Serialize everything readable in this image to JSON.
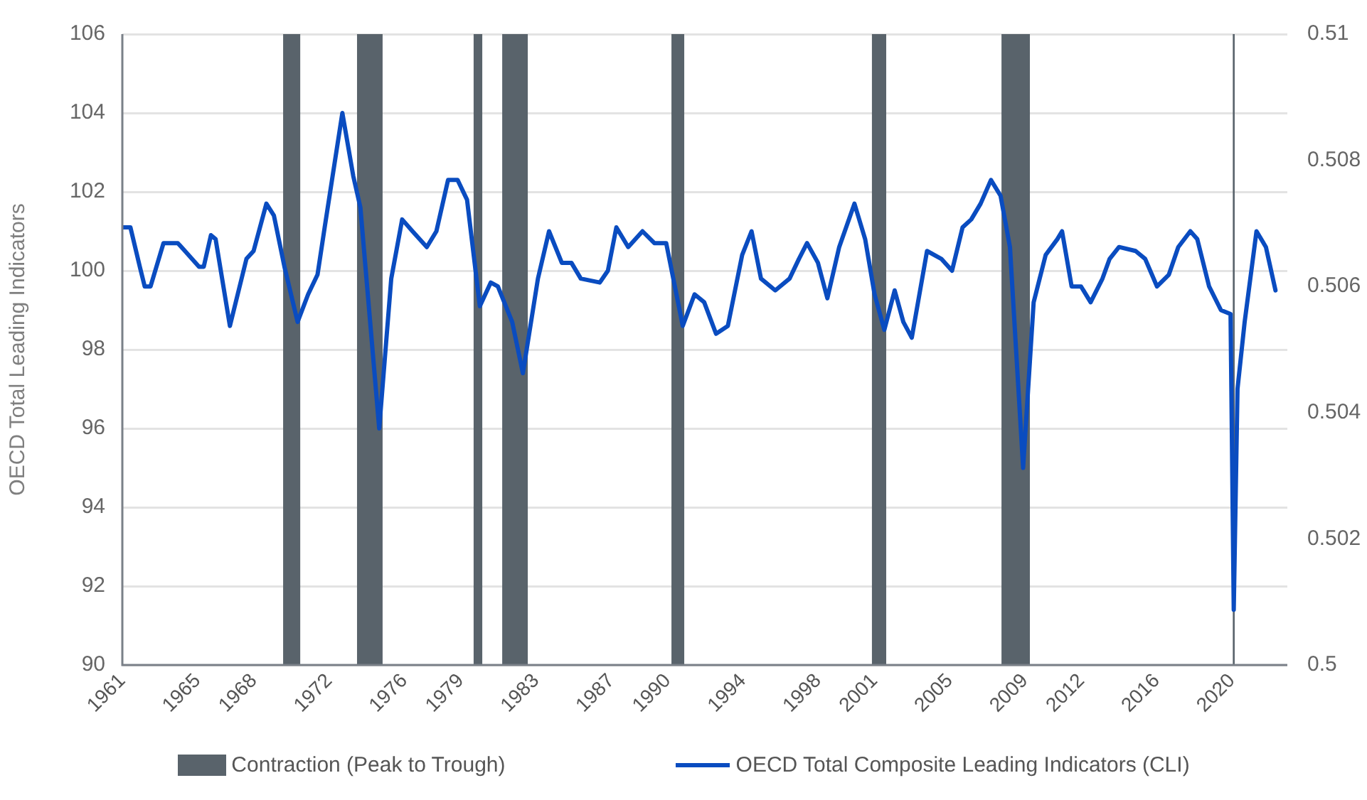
{
  "chart_data": {
    "type": "line",
    "ylabel": "OECD Total Leading Indicators",
    "x": [
      1961,
      1961.43,
      1961.93,
      1962.19,
      1962.5,
      1963.19,
      1963.95,
      1965.08,
      1965.33,
      1965.71,
      1965.96,
      1966.72,
      1967.6,
      1967.98,
      1968.66,
      1969.06,
      1969.62,
      1970.32,
      1970.88,
      1971.38,
      1971.76,
      1972.7,
      1973.28,
      1973.66,
      1974.66,
      1975.3,
      1975.88,
      1976.43,
      1977.19,
      1977.7,
      1978.32,
      1978.83,
      1979.33,
      1980.01,
      1980.59,
      1980.97,
      1981.73,
      1982.3,
      1983.1,
      1983.69,
      1984.37,
      1984.88,
      1985.38,
      1986.39,
      1986.82,
      1987.27,
      1987.9,
      1988.66,
      1989.29,
      1989.92,
      1990.8,
      1991.43,
      1991.94,
      1992.57,
      1993.2,
      1993.58,
      1993.96,
      1994.46,
      1994.96,
      1995.72,
      1996.48,
      1996.98,
      1997.41,
      1997.99,
      1998.49,
      1999.12,
      1999.93,
      2000.5,
      2001.0,
      2001.52,
      2002.07,
      2002.53,
      2002.98,
      2003.79,
      2004.55,
      2005.12,
      2005.68,
      2006.14,
      2006.64,
      2007.19,
      2007.7,
      2008.2,
      2008.9,
      2009.46,
      2010.1,
      2010.72,
      2010.97,
      2011.48,
      2011.98,
      2012.49,
      2013.12,
      2013.5,
      2014.0,
      2014.88,
      2015.39,
      2016.02,
      2016.65,
      2017.15,
      2017.79,
      2018.16,
      2018.79,
      2019.42,
      2019.93,
      2020.1,
      2020.3,
      2020.68,
      2021.31,
      2021.81,
      2022.32
    ],
    "series": [
      {
        "name": "OECD Total Composite Leading Indicators (CLI)",
        "color": "#0a4cc0",
        "values": [
          101.1,
          101.1,
          100.1,
          99.6,
          99.6,
          100.7,
          100.7,
          100.1,
          100.1,
          100.9,
          100.8,
          98.6,
          100.3,
          100.5,
          101.7,
          101.4,
          100.1,
          98.7,
          99.4,
          99.9,
          101.1,
          104.0,
          102.4,
          101.6,
          96.0,
          99.8,
          101.3,
          101.0,
          100.6,
          101.0,
          102.3,
          102.3,
          101.8,
          99.1,
          99.7,
          99.6,
          98.7,
          97.4,
          99.8,
          101.0,
          100.2,
          100.2,
          99.8,
          99.7,
          100.0,
          101.1,
          100.6,
          101.0,
          100.7,
          100.7,
          98.6,
          99.4,
          99.2,
          98.4,
          98.6,
          99.5,
          100.4,
          101.0,
          99.8,
          99.5,
          99.8,
          100.3,
          100.7,
          100.2,
          99.3,
          100.6,
          101.7,
          100.8,
          99.4,
          98.5,
          99.5,
          98.7,
          98.3,
          100.5,
          100.3,
          100.0,
          101.1,
          101.3,
          101.7,
          102.3,
          101.9,
          100.6,
          95.0,
          99.2,
          100.4,
          100.8,
          101.0,
          99.6,
          99.6,
          99.2,
          99.8,
          100.3,
          100.6,
          100.5,
          100.3,
          99.6,
          99.9,
          100.6,
          101.0,
          100.8,
          99.6,
          99.0,
          98.9,
          91.4,
          97.0,
          98.7,
          101.0,
          100.6,
          99.5
        ]
      }
    ],
    "xlim": [
      1961,
      2022.95
    ],
    "xticks": [
      1961,
      1965,
      1968,
      1972,
      1976,
      1979,
      1983,
      1987,
      1990,
      1994,
      1998,
      2001,
      2005,
      2009,
      2012,
      2016,
      2020
    ],
    "ylim": [
      90,
      106
    ],
    "yticks": [
      90,
      92,
      94,
      96,
      98,
      100,
      102,
      104,
      106
    ],
    "y2lim": [
      0.5,
      0.51
    ],
    "y2ticks": [
      0.5,
      0.502,
      0.504,
      0.506,
      0.508,
      0.51
    ],
    "bands": [
      {
        "axis": "x",
        "from": 1969.55,
        "to": 1970.46,
        "label": "Contraction (Peak to Trough)",
        "color": "#59636b"
      },
      {
        "axis": "x",
        "from": 1973.48,
        "to": 1974.84,
        "color": "#59636b"
      },
      {
        "axis": "x",
        "from": 1979.68,
        "to": 1980.14,
        "color": "#59636b"
      },
      {
        "axis": "x",
        "from": 1981.2,
        "to": 1982.56,
        "color": "#59636b"
      },
      {
        "axis": "x",
        "from": 1990.2,
        "to": 1990.88,
        "color": "#59636b"
      },
      {
        "axis": "x",
        "from": 2000.86,
        "to": 2001.62,
        "color": "#59636b"
      },
      {
        "axis": "x",
        "from": 2007.75,
        "to": 2009.26,
        "color": "#59636b"
      },
      {
        "axis": "x",
        "from": 2020.05,
        "to": 2020.15,
        "color": "#59636b"
      }
    ],
    "grid": "y",
    "legend": "bottom",
    "marker": "none",
    "line_style": "solid"
  }
}
